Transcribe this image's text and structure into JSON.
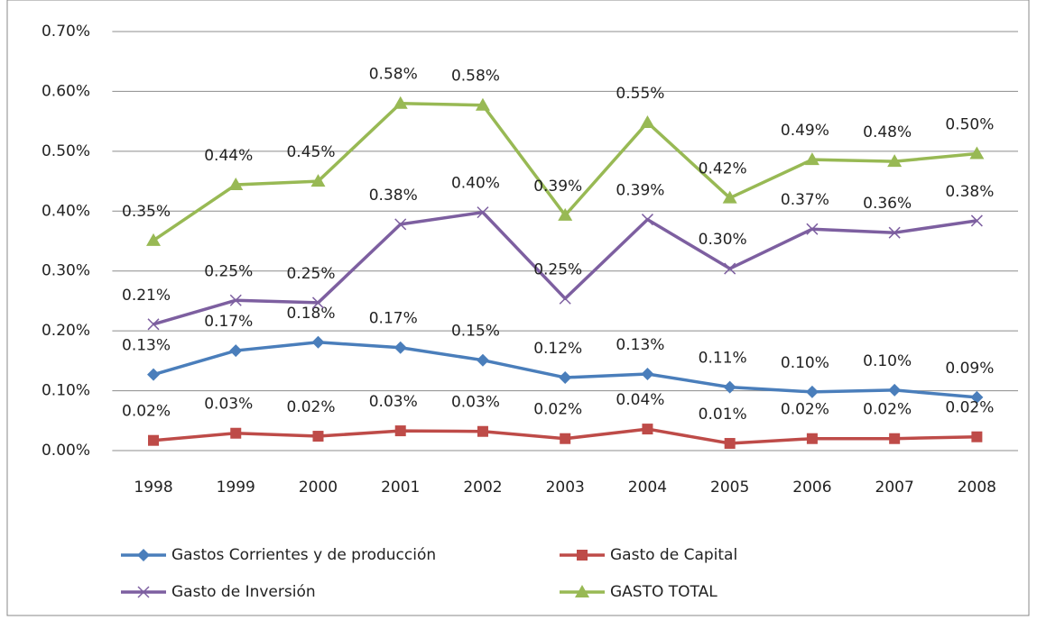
{
  "chart_data": {
    "type": "line",
    "categories": [
      "1998",
      "1999",
      "2000",
      "2001",
      "2002",
      "2003",
      "2004",
      "2005",
      "2006",
      "2007",
      "2008"
    ],
    "ylim": [
      0,
      0.7
    ],
    "yticks": [
      {
        "value": 0,
        "label": "0.00%"
      },
      {
        "value": 0.1,
        "label": "0.10%"
      },
      {
        "value": 0.2,
        "label": "0.20%"
      },
      {
        "value": 0.3,
        "label": "0.30%"
      },
      {
        "value": 0.4,
        "label": "0.40%"
      },
      {
        "value": 0.5,
        "label": "0.50%"
      },
      {
        "value": 0.6,
        "label": "0.60%"
      },
      {
        "value": 0.7,
        "label": "0.70%"
      }
    ],
    "grid": true,
    "legend": "bottom",
    "series": [
      {
        "name": "Gastos Corrientes y de producción",
        "color": "#4a7ebb",
        "marker": "diamond",
        "values": [
          0.127,
          0.167,
          0.181,
          0.172,
          0.151,
          0.122,
          0.128,
          0.106,
          0.098,
          0.101,
          0.089
        ],
        "value_labels": [
          "0.13%",
          "0.17%",
          "0.18%",
          "0.17%",
          "0.15%",
          "0.12%",
          "0.13%",
          "0.11%",
          "0.10%",
          "0.10%",
          "0.09%"
        ]
      },
      {
        "name": "Gasto de Capital",
        "color": "#be4b48",
        "marker": "square",
        "values": [
          0.017,
          0.029,
          0.024,
          0.033,
          0.032,
          0.02,
          0.036,
          0.012,
          0.02,
          0.02,
          0.023
        ],
        "value_labels": [
          "0.02%",
          "0.03%",
          "0.02%",
          "0.03%",
          "0.03%",
          "0.02%",
          "0.04%",
          "0.01%",
          "0.02%",
          "0.02%",
          "0.02%"
        ]
      },
      {
        "name": "Gasto de Inversión",
        "color": "#7d5fa0",
        "marker": "x",
        "values": [
          0.211,
          0.251,
          0.247,
          0.378,
          0.398,
          0.254,
          0.386,
          0.304,
          0.37,
          0.364,
          0.384
        ],
        "value_labels": [
          "0.21%",
          "0.25%",
          "0.25%",
          "0.38%",
          "0.40%",
          "0.25%",
          "0.39%",
          "0.30%",
          "0.37%",
          "0.36%",
          "0.38%"
        ]
      },
      {
        "name": "GASTO TOTAL",
        "color": "#98b954",
        "marker": "triangle",
        "values": [
          0.351,
          0.444,
          0.45,
          0.58,
          0.577,
          0.393,
          0.548,
          0.422,
          0.486,
          0.483,
          0.496
        ],
        "value_labels": [
          "0.35%",
          "0.44%",
          "0.45%",
          "0.58%",
          "0.58%",
          "0.39%",
          "0.55%",
          "0.42%",
          "0.49%",
          "0.48%",
          "0.50%"
        ]
      }
    ]
  }
}
